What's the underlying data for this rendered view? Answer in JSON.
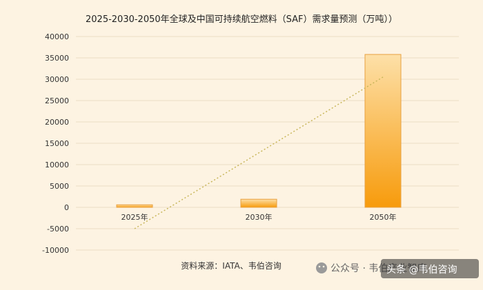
{
  "chart_data": {
    "type": "bar",
    "title": "2025-2030-2050年全球及中国可持续航空燃料（SAF）需求量预测（万吨））",
    "categories": [
      "2025年",
      "2030年",
      "2050年"
    ],
    "values": [
      600,
      1900,
      35800
    ],
    "ylim": [
      -10000,
      40000
    ],
    "yticks": [
      40000,
      35000,
      30000,
      25000,
      20000,
      15000,
      10000,
      5000,
      0,
      -5000,
      -10000
    ],
    "trendline": {
      "style": "dotted",
      "start": -5000,
      "end": 30500
    },
    "grid": true,
    "legend": "none",
    "source": "资料来源：IATA、韦伯咨询"
  },
  "watermark": {
    "left": "公众号 · 韦伯产业智库",
    "right": "头条 @韦伯咨询"
  },
  "colors": {
    "bar_top": "#fde0a8",
    "bar_bottom": "#f79b0c",
    "bar_stroke": "#e8a040",
    "trend": "#c8b65a",
    "grid": "#ecdcc4"
  }
}
